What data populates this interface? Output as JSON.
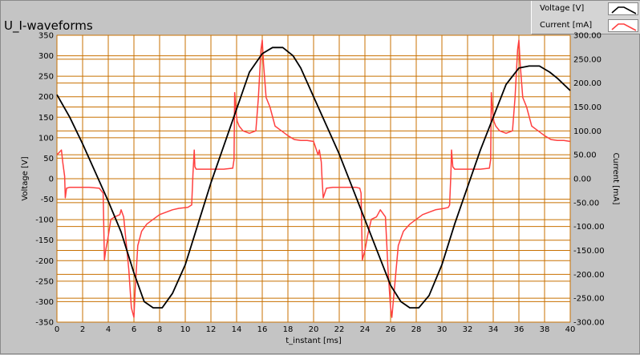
{
  "window": {
    "title": "U_I-waveforms"
  },
  "legend": {
    "items": [
      {
        "label": "Voltage [V]",
        "color": "#000000"
      },
      {
        "label": "Current [mA]",
        "color": "#ff4040"
      }
    ]
  },
  "colors": {
    "plot_bg": "#ffffff",
    "grid": "#c87000",
    "voltage": "#000000",
    "current": "#ff4040"
  },
  "chart_data": {
    "type": "line",
    "title": "U_I-waveforms",
    "xlabel": "t_instant [ms]",
    "ylabel": "Voltage [V]",
    "y2label": "Current [mA]",
    "xlim": [
      0,
      40
    ],
    "ylim": [
      -350,
      350
    ],
    "y2lim": [
      -300,
      300
    ],
    "grid": true,
    "legend_position": "top-right",
    "x_ticks": [
      "0",
      "2",
      "4",
      "6",
      "8",
      "10",
      "12",
      "14",
      "16",
      "18",
      "20",
      "22",
      "24",
      "26",
      "28",
      "30",
      "32",
      "34",
      "36",
      "38",
      "40"
    ],
    "y_ticks": [
      "350",
      "300",
      "250",
      "200",
      "150",
      "100",
      "50",
      "0",
      "-50",
      "-100",
      "-150",
      "-200",
      "-250",
      "-300",
      "-350"
    ],
    "y2_ticks": [
      "300.00",
      "250.00",
      "200.00",
      "150.00",
      "100.00",
      "50.00",
      "0.00",
      "-50.00",
      "-100.00",
      "-150.00",
      "-200.00",
      "-250.00",
      "-300.00"
    ],
    "series": [
      {
        "name": "Voltage [V]",
        "axis": "left",
        "x": [
          0,
          1,
          2,
          3,
          4,
          5,
          6,
          6.8,
          7.5,
          8.2,
          9,
          10,
          11,
          12,
          13,
          14,
          15,
          16,
          16.8,
          17.6,
          18.4,
          19,
          20,
          21,
          22,
          23,
          24,
          25,
          26,
          26.8,
          27.5,
          28.2,
          29,
          30,
          31,
          32,
          33,
          34,
          35,
          36,
          36.8,
          37.6,
          38.4,
          39,
          40
        ],
        "values": [
          205,
          150,
          85,
          15,
          -55,
          -130,
          -230,
          -300,
          -315,
          -315,
          -280,
          -210,
          -110,
          -10,
          80,
          170,
          260,
          305,
          320,
          320,
          300,
          270,
          200,
          130,
          60,
          -20,
          -100,
          -180,
          -260,
          -300,
          -315,
          -315,
          -285,
          -210,
          -110,
          -20,
          70,
          150,
          230,
          270,
          275,
          275,
          260,
          245,
          215
        ]
      },
      {
        "name": "Current [mA]",
        "axis": "right",
        "x": [
          0,
          0.35,
          0.45,
          0.6,
          0.65,
          0.75,
          1.0,
          1.5,
          2.5,
          3.3,
          3.6,
          3.7,
          3.8,
          4.0,
          4.2,
          4.5,
          4.9,
          5.0,
          5.2,
          5.6,
          5.8,
          6.0,
          6.1,
          6.3,
          6.6,
          7.0,
          7.5,
          8.0,
          8.5,
          9.0,
          9.5,
          10.2,
          10.5,
          10.6,
          10.7,
          10.75,
          10.85,
          11.0,
          11.5,
          12.0,
          13.0,
          13.7,
          13.8,
          13.85,
          13.95,
          14.05,
          14.2,
          14.5,
          15.0,
          15.5,
          15.7,
          15.9,
          16.0,
          16.1,
          16.3,
          16.6,
          17.0,
          17.5,
          18.0,
          18.5,
          19.0,
          19.5,
          20.0,
          20.35,
          20.45,
          20.6,
          20.65,
          20.75,
          21.0,
          21.5,
          22.5,
          23.3,
          23.6,
          23.7,
          23.8,
          24.0,
          24.2,
          24.5,
          24.9,
          25.0,
          25.2,
          25.6,
          25.8,
          26.0,
          26.1,
          26.3,
          26.6,
          27.0,
          27.5,
          28.0,
          28.5,
          29.0,
          29.5,
          30.2,
          30.5,
          30.6,
          30.7,
          30.75,
          30.85,
          31.0,
          31.5,
          32.0,
          33.0,
          33.7,
          33.8,
          33.85,
          33.95,
          34.05,
          34.2,
          34.5,
          35.0,
          35.5,
          35.7,
          35.9,
          36.0,
          36.1,
          36.3,
          36.6,
          37.0,
          37.5,
          38.0,
          38.5,
          39.0,
          39.5,
          40.0
        ],
        "values": [
          50,
          60,
          35,
          5,
          -40,
          -20,
          -18,
          -18,
          -18,
          -20,
          -30,
          -170,
          -150,
          -120,
          -85,
          -80,
          -75,
          -65,
          -80,
          -190,
          -270,
          -290,
          -230,
          -140,
          -110,
          -95,
          -85,
          -75,
          -70,
          -65,
          -62,
          -60,
          -55,
          10,
          60,
          25,
          20,
          20,
          20,
          20,
          20,
          22,
          40,
          180,
          140,
          120,
          110,
          100,
          95,
          100,
          170,
          270,
          290,
          240,
          170,
          150,
          110,
          100,
          90,
          82,
          80,
          80,
          78,
          50,
          60,
          35,
          5,
          -40,
          -20,
          -18,
          -18,
          -18,
          -20,
          -30,
          -170,
          -150,
          -120,
          -85,
          -80,
          -75,
          -65,
          -80,
          -190,
          -270,
          -290,
          -230,
          -140,
          -110,
          -95,
          -85,
          -75,
          -70,
          -65,
          -62,
          -60,
          -55,
          10,
          60,
          25,
          20,
          20,
          20,
          20,
          22,
          40,
          180,
          140,
          120,
          110,
          100,
          95,
          100,
          170,
          270,
          290,
          240,
          170,
          150,
          110,
          100,
          90,
          82,
          80,
          80,
          78
        ]
      }
    ]
  }
}
